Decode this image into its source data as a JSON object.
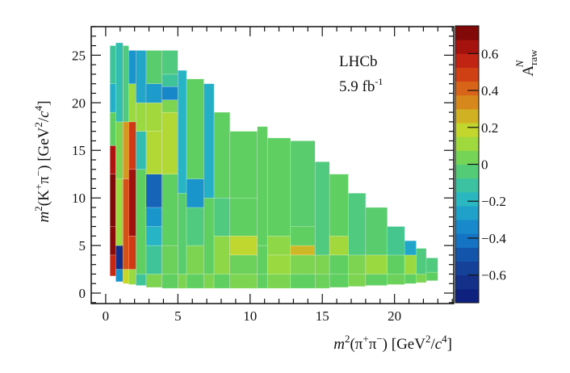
{
  "chart_data": {
    "type": "heatmap",
    "title": "",
    "annotations": {
      "experiment": "LHCb",
      "luminosity": "5.9 fb",
      "luminosity_sup": "-1"
    },
    "xlabel_parts": [
      {
        "t": "m",
        "it": true
      },
      {
        "t": "2",
        "sup": true
      },
      {
        "t": "(π"
      },
      {
        "t": "+",
        "sup": true
      },
      {
        "t": "π"
      },
      {
        "t": "−",
        "sup": true
      },
      {
        "t": ") [GeV"
      },
      {
        "t": "2",
        "sup": true
      },
      {
        "t": "/"
      },
      {
        "t": "c",
        "it": true
      },
      {
        "t": "4",
        "sup": true
      },
      {
        "t": "]"
      }
    ],
    "ylabel_parts": [
      {
        "t": "m",
        "it": true
      },
      {
        "t": "2",
        "sup": true
      },
      {
        "t": "(K"
      },
      {
        "t": "+",
        "sup": true
      },
      {
        "t": "π"
      },
      {
        "t": "−",
        "sup": true
      },
      {
        "t": ") [GeV"
      },
      {
        "t": "2",
        "sup": true
      },
      {
        "t": "/"
      },
      {
        "t": "c",
        "it": true
      },
      {
        "t": "4",
        "sup": true
      },
      {
        "t": "]"
      }
    ],
    "zlabel": {
      "main": "A",
      "sub": "raw",
      "sup": "N"
    },
    "xlim": [
      -1,
      24.1
    ],
    "ylim": [
      -1.1,
      28
    ],
    "zlim": [
      -0.75,
      0.75
    ],
    "xticks": [
      "0",
      "5",
      "10",
      "15",
      "20"
    ],
    "yticks": [
      "0",
      "5",
      "10",
      "15",
      "20",
      "25"
    ],
    "zticks": [
      "−0.6",
      "−0.4",
      "−0.2",
      "0",
      "0.2",
      "0.4",
      "0.6"
    ],
    "zticks_values": [
      -0.6,
      -0.4,
      -0.2,
      0,
      0.2,
      0.4,
      0.6
    ],
    "colormap": [
      [
        -0.75,
        "#0d1a78"
      ],
      [
        -0.6,
        "#17388f"
      ],
      [
        -0.5,
        "#1450a8"
      ],
      [
        -0.4,
        "#1578c8"
      ],
      [
        -0.3,
        "#1a95cc"
      ],
      [
        -0.2,
        "#27b5c6"
      ],
      [
        -0.1,
        "#3fc49a"
      ],
      [
        0,
        "#5fcf62"
      ],
      [
        0.1,
        "#9ad940"
      ],
      [
        0.2,
        "#c8d62a"
      ],
      [
        0.3,
        "#d49a20"
      ],
      [
        0.4,
        "#d86a18"
      ],
      [
        0.5,
        "#cf3a14"
      ],
      [
        0.6,
        "#b81610"
      ],
      [
        0.75,
        "#6e0606"
      ]
    ],
    "bins": [
      {
        "x": [
          0.3,
          0.7
        ],
        "cells": [
          [
            1.8,
            4,
            0.55
          ],
          [
            4,
            7,
            0.7
          ],
          [
            7,
            12.5,
            0.72
          ],
          [
            12.5,
            15.5,
            0.62
          ],
          [
            15.5,
            19,
            0.0
          ],
          [
            19,
            22,
            -0.22
          ],
          [
            22,
            26,
            -0.1
          ]
        ]
      },
      {
        "x": [
          0.7,
          1.2
        ],
        "cells": [
          [
            1.2,
            2.5,
            -0.3
          ],
          [
            2.5,
            5,
            -0.65
          ],
          [
            5,
            12,
            0.1
          ],
          [
            12,
            18,
            0.05
          ],
          [
            18,
            26.3,
            -0.15
          ]
        ]
      },
      {
        "x": [
          1.2,
          1.6
        ],
        "cells": [
          [
            1.0,
            2.5,
            0.2
          ],
          [
            2.5,
            12,
            0.45
          ],
          [
            12,
            18,
            0.3
          ],
          [
            18,
            26,
            -0.05
          ]
        ]
      },
      {
        "x": [
          1.6,
          2.1
        ],
        "cells": [
          [
            0.9,
            2.5,
            0.1
          ],
          [
            2.5,
            6,
            0.5
          ],
          [
            6,
            13,
            0.65
          ],
          [
            13,
            18,
            0.5
          ],
          [
            18,
            22,
            0.1
          ],
          [
            22,
            25.5,
            -0.3
          ]
        ]
      },
      {
        "x": [
          2.1,
          2.8
        ],
        "cells": [
          [
            0.8,
            2,
            -0.1
          ],
          [
            2,
            13,
            0.0
          ],
          [
            13,
            17,
            -0.15
          ],
          [
            17,
            20,
            0.1
          ],
          [
            20,
            25.5,
            -0.25
          ]
        ]
      },
      {
        "x": [
          2.8,
          3.9
        ],
        "cells": [
          [
            0.6,
            2,
            0.05
          ],
          [
            2,
            5,
            -0.1
          ],
          [
            5,
            7,
            -0.2
          ],
          [
            7,
            9,
            -0.3
          ],
          [
            9,
            12.5,
            -0.45
          ],
          [
            12.5,
            17,
            0.15
          ],
          [
            17,
            20,
            0.12
          ],
          [
            20,
            22,
            -0.28
          ],
          [
            22,
            25.5,
            -0.02
          ]
        ]
      },
      {
        "x": [
          3.9,
          5
        ],
        "cells": [
          [
            0.5,
            2,
            0.0
          ],
          [
            2,
            5,
            0.02
          ],
          [
            5,
            12.5,
            0.0
          ],
          [
            12.5,
            19,
            0.15
          ],
          [
            19,
            20.3,
            0.05
          ],
          [
            20.3,
            21.7,
            -0.35
          ],
          [
            21.7,
            23,
            -0.1
          ],
          [
            23,
            25.5,
            -0.05
          ]
        ]
      },
      {
        "x": [
          5,
          5.6
        ],
        "cells": [
          [
            0.5,
            2,
            0.05
          ],
          [
            2,
            10.5,
            -0.02
          ],
          [
            10.5,
            23.4,
            -0.2
          ]
        ]
      },
      {
        "x": [
          5.6,
          6.8
        ],
        "cells": [
          [
            0.5,
            2,
            0.0
          ],
          [
            2,
            5,
            0.05
          ],
          [
            5,
            9,
            -0.05
          ],
          [
            9,
            12,
            -0.3
          ],
          [
            12,
            22.5,
            0.0
          ]
        ]
      },
      {
        "x": [
          6.8,
          7.5
        ],
        "cells": [
          [
            0.5,
            2,
            0.05
          ],
          [
            2,
            10,
            0.0
          ],
          [
            10,
            22,
            -0.22
          ]
        ]
      },
      {
        "x": [
          7.5,
          8.6
        ],
        "cells": [
          [
            0.5,
            2,
            0.0
          ],
          [
            2,
            6,
            0.08
          ],
          [
            6,
            10,
            -0.05
          ],
          [
            10,
            19,
            0.0
          ]
        ]
      },
      {
        "x": [
          8.6,
          10.5
        ],
        "cells": [
          [
            0.5,
            2,
            0.05
          ],
          [
            2,
            4,
            0.02
          ],
          [
            4,
            6,
            0.18
          ],
          [
            6,
            10,
            0.0
          ],
          [
            10,
            17,
            0.0
          ]
        ]
      },
      {
        "x": [
          10.5,
          11.2
        ],
        "cells": [
          [
            0.5,
            2,
            0.0
          ],
          [
            2,
            5,
            0.0
          ],
          [
            5,
            17.5,
            0.0
          ]
        ]
      },
      {
        "x": [
          11.2,
          12.8
        ],
        "cells": [
          [
            0.5,
            2,
            0.05
          ],
          [
            2,
            4,
            0.1
          ],
          [
            4,
            6,
            0.08
          ],
          [
            6,
            16.3,
            0.0
          ]
        ]
      },
      {
        "x": [
          12.8,
          14.5
        ],
        "cells": [
          [
            0.5,
            2,
            0.0
          ],
          [
            2,
            4,
            0.05
          ],
          [
            4,
            5,
            0.25
          ],
          [
            5,
            7,
            0.0
          ],
          [
            7,
            16,
            -0.02
          ]
        ]
      },
      {
        "x": [
          14.5,
          15.5
        ],
        "cells": [
          [
            0.5,
            2,
            0.02
          ],
          [
            2,
            4,
            0.05
          ],
          [
            4,
            13.8,
            -0.05
          ]
        ]
      },
      {
        "x": [
          15.5,
          16.8
        ],
        "cells": [
          [
            0.6,
            2,
            0.0
          ],
          [
            2,
            4,
            0.0
          ],
          [
            4,
            6,
            0.12
          ],
          [
            6,
            12.5,
            0.0
          ]
        ]
      },
      {
        "x": [
          16.8,
          18
        ],
        "cells": [
          [
            0.7,
            2,
            0.05
          ],
          [
            2,
            4,
            0.05
          ],
          [
            4,
            10.5,
            -0.05
          ]
        ]
      },
      {
        "x": [
          18,
          19.5
        ],
        "cells": [
          [
            0.8,
            2,
            0.0
          ],
          [
            2,
            4,
            0.1
          ],
          [
            4,
            9,
            -0.02
          ]
        ]
      },
      {
        "x": [
          19.5,
          20.7
        ],
        "cells": [
          [
            0.9,
            2,
            0.02
          ],
          [
            2,
            4,
            0.0
          ],
          [
            4,
            7,
            -0.08
          ]
        ]
      },
      {
        "x": [
          20.7,
          21.5
        ],
        "cells": [
          [
            1.0,
            2,
            0.0
          ],
          [
            2,
            4,
            0.1
          ],
          [
            4,
            5.5,
            -0.25
          ]
        ]
      },
      {
        "x": [
          21.5,
          22.2
        ],
        "cells": [
          [
            1.1,
            2,
            0.05
          ],
          [
            2,
            4.7,
            -0.05
          ]
        ]
      },
      {
        "x": [
          22.2,
          23
        ],
        "cells": [
          [
            1.3,
            2.2,
            0.0
          ],
          [
            2.2,
            3.7,
            -0.05
          ]
        ]
      }
    ]
  }
}
